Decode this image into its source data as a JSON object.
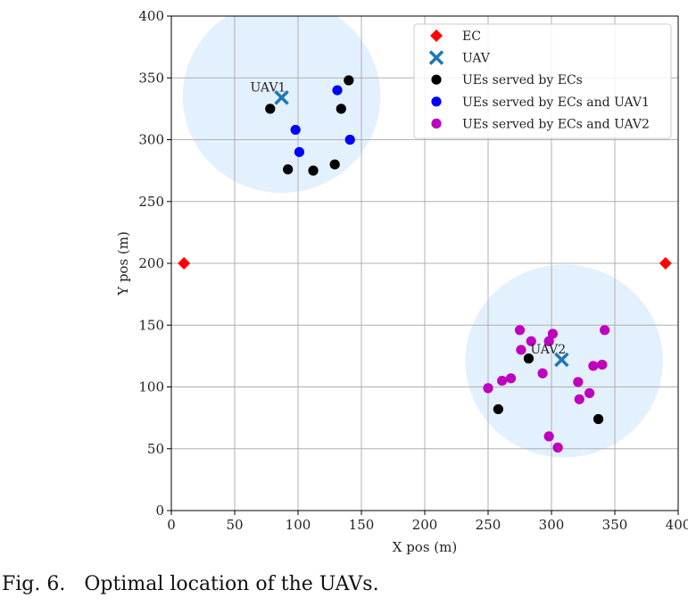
{
  "caption": "Fig. 6.   Optimal location of the UAVs.",
  "chart_data": {
    "type": "scatter",
    "xlabel": "X pos (m)",
    "ylabel": "Y pos (m)",
    "xlim": [
      0,
      400
    ],
    "ylim": [
      0,
      400
    ],
    "xticks": [
      0,
      50,
      100,
      150,
      200,
      250,
      300,
      350,
      400
    ],
    "yticks": [
      0,
      50,
      100,
      150,
      200,
      250,
      300,
      350,
      400
    ],
    "grid": true,
    "legend_position": "top-right",
    "colors": {
      "ec": "#ff0000",
      "uav": "#1f77b4",
      "ue_ec": "#000000",
      "ue_uav1": "#0000ff",
      "ue_uav2": "#bf00bf",
      "coverage": "#e3f0fd",
      "grid": "#b0b0b0"
    },
    "coverage_areas": [
      {
        "center": [
          87,
          335
        ],
        "radius": 78
      },
      {
        "center": [
          310,
          121
        ],
        "radius": 78
      }
    ],
    "series": [
      {
        "name": "EC",
        "marker": "diamond",
        "color": "#ff0000",
        "points": [
          [
            10,
            200
          ],
          [
            390,
            200
          ]
        ]
      },
      {
        "name": "UAV",
        "marker": "x",
        "color": "#1f77b4",
        "points": [
          [
            87,
            334
          ],
          [
            308,
            122
          ]
        ]
      },
      {
        "name": "UEs served by ECs",
        "marker": "circle",
        "color": "#000000",
        "points": [
          [
            78,
            325
          ],
          [
            92,
            276
          ],
          [
            112,
            275
          ],
          [
            129,
            280
          ],
          [
            134,
            325
          ],
          [
            140,
            348
          ],
          [
            282,
            123
          ],
          [
            258,
            82
          ],
          [
            337,
            74
          ]
        ]
      },
      {
        "name": "UEs served by ECs and UAV1",
        "marker": "circle",
        "color": "#0000ff",
        "points": [
          [
            131,
            340
          ],
          [
            98,
            308
          ],
          [
            101,
            290
          ],
          [
            141,
            300
          ]
        ]
      },
      {
        "name": "UEs served by ECs and UAV2",
        "marker": "circle",
        "color": "#bf00bf",
        "points": [
          [
            275,
            146
          ],
          [
            276,
            130
          ],
          [
            284,
            137
          ],
          [
            301,
            143
          ],
          [
            298,
            137
          ],
          [
            293,
            111
          ],
          [
            268,
            107
          ],
          [
            261,
            105
          ],
          [
            250,
            99
          ],
          [
            321,
            104
          ],
          [
            322,
            90
          ],
          [
            330,
            95
          ],
          [
            333,
            117
          ],
          [
            340,
            118
          ],
          [
            342,
            146
          ],
          [
            298,
            60
          ],
          [
            305,
            51
          ]
        ]
      }
    ],
    "annotations": [
      {
        "text": "UAV1",
        "x": 87,
        "y": 334
      },
      {
        "text": "UAV2",
        "x": 308,
        "y": 122
      }
    ]
  }
}
